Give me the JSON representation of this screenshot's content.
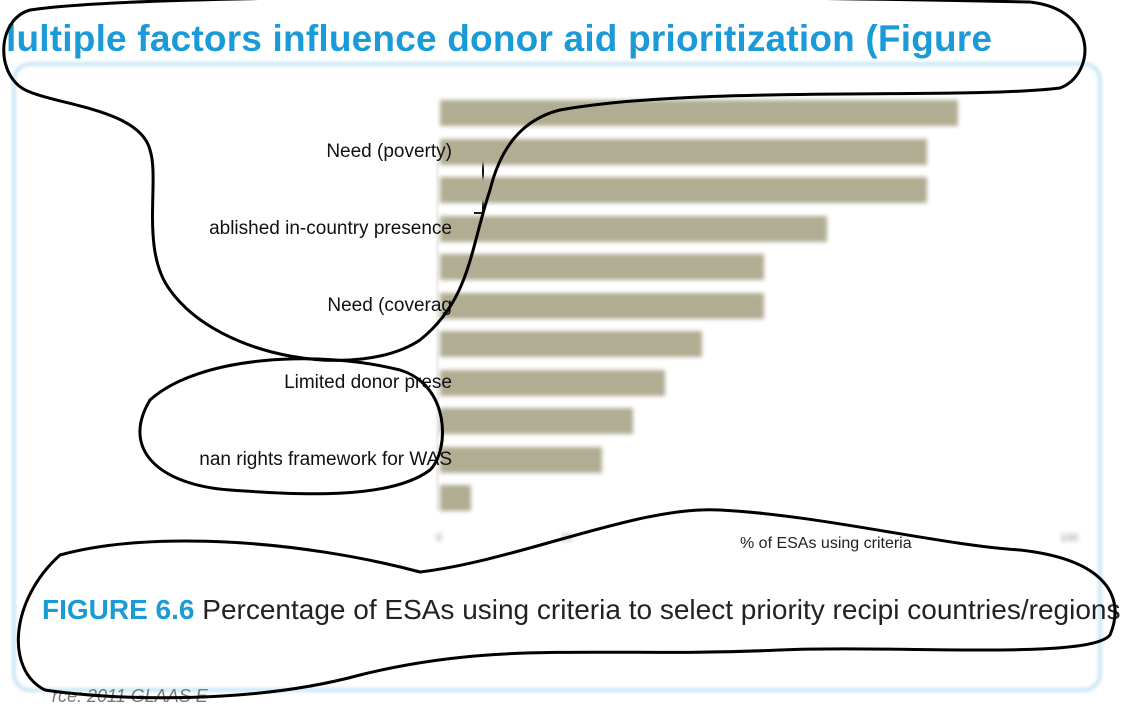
{
  "heading": "lultiple factors influence donor aid prioritization (Figure",
  "chart_data": {
    "type": "bar",
    "orientation": "horizontal",
    "xlabel": "% of ESAs using criteria",
    "xlim": [
      0,
      100
    ],
    "tick_labels": [
      "0",
      "20",
      "100"
    ],
    "categories": [
      "",
      "Need (poverty)",
      "",
      "ablished in-country presence",
      "",
      "Need (coverag",
      "",
      "Limited donor prese",
      "",
      "nan rights framework for WAS",
      ""
    ],
    "values": [
      83,
      78,
      78,
      62,
      52,
      52,
      42,
      36,
      31,
      26,
      5
    ]
  },
  "caption": {
    "label": "FIGURE 6.6",
    "text": " Percentage of ESAs using criteria to select priority recipi countries/regions"
  },
  "source": "rce: 2011 GLAAS E"
}
